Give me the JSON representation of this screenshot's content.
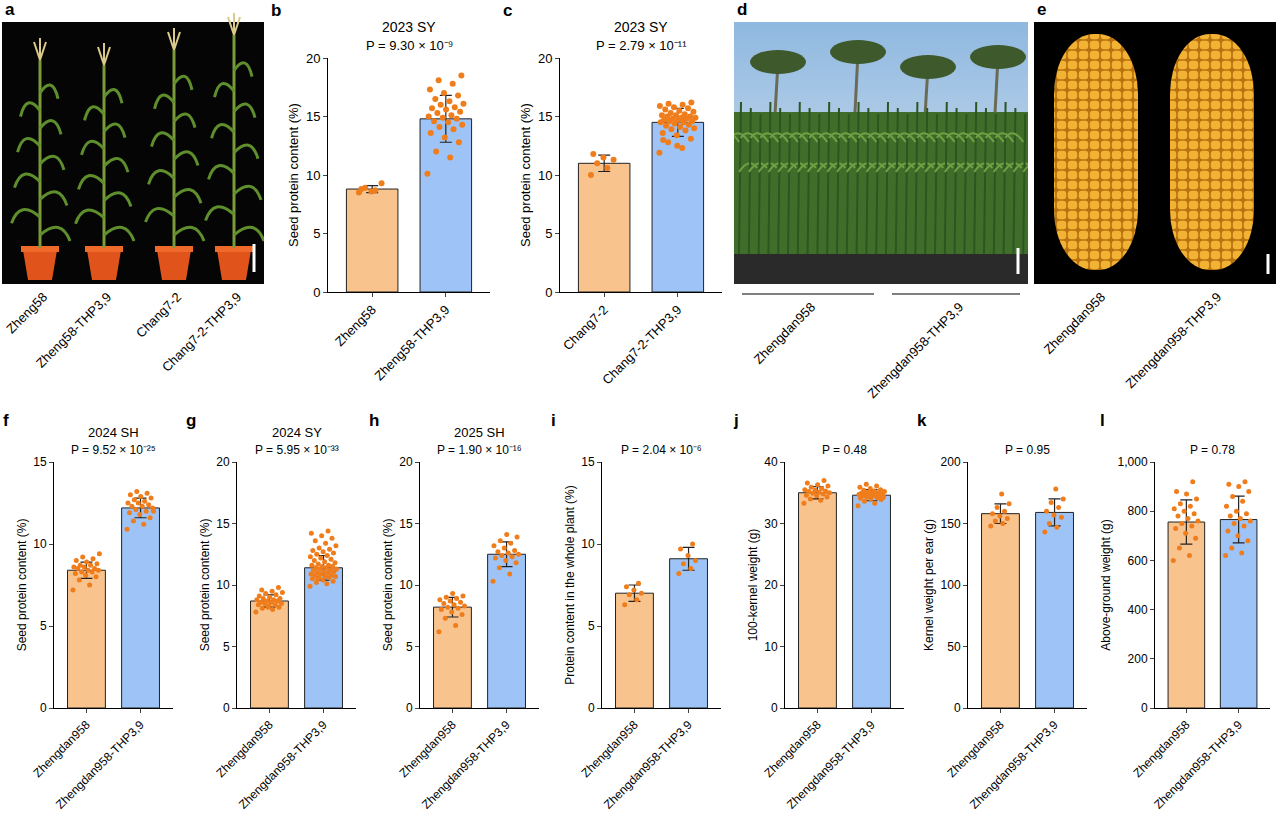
{
  "chart_data": [
    {
      "panel": "b",
      "type": "bar",
      "title": "2023 SY",
      "annotation": "P = 9.30 × 10⁻⁹",
      "categories": [
        "Zheng58",
        "Zheng58-THP3,9"
      ],
      "values": [
        8.8,
        14.8
      ],
      "error": [
        0.3,
        2.0
      ],
      "colors": [
        "#f9c38e",
        "#9ec4f7"
      ],
      "points": {
        "color": "#f07d1c",
        "values": [
          [
            8.5,
            8.7,
            8.9,
            9.3,
            8.6,
            8.8
          ],
          [
            10.1,
            11.5,
            12.0,
            12.8,
            13.2,
            13.6,
            13.9,
            14.1,
            14.3,
            14.5,
            14.6,
            14.8,
            14.9,
            15.0,
            15.1,
            15.3,
            15.4,
            15.6,
            15.7,
            15.8,
            16.0,
            16.1,
            16.3,
            16.5,
            16.8,
            17.0,
            17.3,
            17.8,
            18.1,
            18.5
          ]
        ]
      },
      "ylabel": "Seed protein content (%)",
      "ylim": [
        0,
        20
      ],
      "yticks": [
        0,
        5,
        10,
        15,
        20
      ],
      "grid": false
    },
    {
      "panel": "c",
      "type": "bar",
      "title": "2023 SY",
      "annotation": "P = 2.79 × 10⁻¹¹",
      "categories": [
        "Chang7-2",
        "Chang7-2-THP3,9"
      ],
      "values": [
        11.0,
        14.5
      ],
      "error": [
        0.7,
        1.2
      ],
      "colors": [
        "#f9c38e",
        "#9ec4f7"
      ],
      "points": {
        "color": "#f07d1c",
        "values": [
          [
            10.0,
            10.6,
            11.0,
            11.3,
            11.5,
            11.8
          ],
          [
            11.9,
            12.3,
            12.8,
            13.1,
            13.4,
            13.6,
            13.8,
            13.9,
            14.0,
            14.1,
            14.2,
            14.3,
            14.4,
            14.5,
            14.5,
            14.6,
            14.6,
            14.7,
            14.7,
            14.8,
            14.8,
            14.9,
            14.9,
            15.0,
            15.0,
            15.1,
            15.1,
            15.2,
            15.3,
            15.4,
            15.5,
            15.6,
            15.7,
            15.8,
            15.9,
            16.0,
            16.1,
            16.2,
            12.5,
            13.0
          ]
        ]
      },
      "ylabel": "Seed protein content (%)",
      "ylim": [
        0,
        20
      ],
      "yticks": [
        0,
        5,
        10,
        15,
        20
      ],
      "grid": false
    },
    {
      "panel": "f",
      "type": "bar",
      "title": "2024 SH",
      "annotation": "P = 9.52 × 10⁻²⁵",
      "categories": [
        "Zhengdan958",
        "Zhengdan958-THP3,9"
      ],
      "values": [
        8.4,
        12.2
      ],
      "error": [
        0.5,
        0.6
      ],
      "colors": [
        "#f9c38e",
        "#9ec4f7"
      ],
      "points": {
        "color": "#f07d1c",
        "values": [
          [
            7.2,
            7.5,
            7.8,
            8.0,
            8.1,
            8.2,
            8.3,
            8.3,
            8.4,
            8.4,
            8.5,
            8.5,
            8.6,
            8.6,
            8.7,
            8.7,
            8.8,
            8.9,
            9.0,
            9.1,
            9.2,
            9.4
          ],
          [
            10.9,
            11.2,
            11.4,
            11.6,
            11.8,
            11.9,
            12.0,
            12.1,
            12.2,
            12.3,
            12.3,
            12.4,
            12.5,
            12.5,
            12.6,
            12.7,
            12.8,
            12.9,
            13.0,
            13.1,
            13.2,
            12.0
          ]
        ]
      },
      "ylabel": "Seed protein content (%)",
      "ylim": [
        0,
        15
      ],
      "yticks": [
        0,
        5,
        10,
        15
      ],
      "grid": false
    },
    {
      "panel": "g",
      "type": "bar",
      "title": "2024 SY",
      "annotation": "P = 5.95 × 10⁻³³",
      "categories": [
        "Zhengdan958",
        "Zhengdan958-THP3,9"
      ],
      "values": [
        8.7,
        11.4
      ],
      "error": [
        0.5,
        1.0
      ],
      "colors": [
        "#f9c38e",
        "#9ec4f7"
      ],
      "points": {
        "color": "#f07d1c",
        "values": [
          [
            7.8,
            8.0,
            8.1,
            8.2,
            8.3,
            8.4,
            8.4,
            8.5,
            8.5,
            8.6,
            8.6,
            8.7,
            8.7,
            8.8,
            8.8,
            8.9,
            8.9,
            9.0,
            9.1,
            9.2,
            9.3,
            9.4,
            9.5,
            9.6,
            9.8,
            8.2
          ],
          [
            9.9,
            10.1,
            10.2,
            10.3,
            10.4,
            10.5,
            10.6,
            10.6,
            10.7,
            10.7,
            10.8,
            10.8,
            10.9,
            10.9,
            11.0,
            11.0,
            11.1,
            11.1,
            11.2,
            11.2,
            11.3,
            11.3,
            11.4,
            11.4,
            11.5,
            11.5,
            11.6,
            11.6,
            11.7,
            11.8,
            11.9,
            12.0,
            12.1,
            12.2,
            12.3,
            12.4,
            12.5,
            12.6,
            12.7,
            12.8,
            12.9,
            13.0,
            13.2,
            13.4,
            13.6,
            13.8,
            14.0,
            14.2,
            14.4,
            10.5
          ]
        ]
      },
      "ylabel": "Seed protein content (%)",
      "ylim": [
        0,
        20
      ],
      "yticks": [
        0,
        5,
        10,
        15,
        20
      ],
      "grid": false
    },
    {
      "panel": "h",
      "type": "bar",
      "title": "2025 SH",
      "annotation": "P = 1.90 × 10⁻¹⁶",
      "categories": [
        "Zhengdan958",
        "Zhengdan958-THP3,9"
      ],
      "values": [
        8.2,
        12.5
      ],
      "error": [
        0.8,
        1.0
      ],
      "colors": [
        "#f9c38e",
        "#9ec4f7"
      ],
      "points": {
        "color": "#f07d1c",
        "values": [
          [
            6.2,
            6.7,
            7.3,
            7.6,
            7.8,
            8.0,
            8.1,
            8.2,
            8.3,
            8.4,
            8.5,
            8.6,
            8.7,
            8.8,
            8.9,
            9.0,
            9.1,
            9.3
          ],
          [
            10.3,
            10.9,
            11.4,
            11.8,
            12.0,
            12.2,
            12.3,
            12.4,
            12.5,
            12.6,
            12.7,
            12.8,
            13.0,
            13.2,
            13.4,
            13.6,
            13.9,
            14.1
          ]
        ]
      },
      "ylabel": "Seed protein content (%)",
      "ylim": [
        0,
        20
      ],
      "yticks": [
        0,
        5,
        10,
        15,
        20
      ],
      "grid": false
    },
    {
      "panel": "i",
      "type": "bar",
      "annotation": "P = 2.04 × 10⁻⁶",
      "categories": [
        "Zhengdan958",
        "Zhengdan958-THP3,9"
      ],
      "values": [
        7.0,
        9.1
      ],
      "error": [
        0.5,
        0.7
      ],
      "colors": [
        "#f9c38e",
        "#9ec4f7"
      ],
      "points": {
        "color": "#f07d1c",
        "values": [
          [
            6.3,
            6.6,
            6.9,
            7.0,
            7.2,
            7.4,
            7.6
          ],
          [
            8.2,
            8.5,
            8.8,
            9.0,
            9.3,
            9.7,
            10.0
          ]
        ]
      },
      "ylabel": "Protein content in the whole plant (%)",
      "ylim": [
        0,
        15
      ],
      "yticks": [
        0,
        5,
        10,
        15
      ],
      "grid": false
    },
    {
      "panel": "j",
      "type": "bar",
      "annotation": "P = 0.48",
      "categories": [
        "Zhengdan958",
        "Zhengdan958-THP3,9"
      ],
      "values": [
        35.0,
        34.6
      ],
      "error": [
        1.0,
        0.9
      ],
      "colors": [
        "#f9c38e",
        "#9ec4f7"
      ],
      "points": {
        "color": "#f07d1c",
        "values": [
          [
            33.3,
            33.8,
            34.0,
            34.3,
            34.5,
            34.6,
            34.8,
            34.9,
            35.0,
            35.1,
            35.2,
            35.3,
            35.4,
            35.5,
            35.7,
            35.9,
            36.1,
            36.3,
            36.6,
            37.0
          ],
          [
            32.9,
            33.3,
            33.6,
            33.9,
            34.0,
            34.1,
            34.2,
            34.3,
            34.4,
            34.5,
            34.5,
            34.6,
            34.6,
            34.7,
            34.7,
            34.8,
            34.8,
            34.9,
            34.9,
            35.0,
            35.1,
            35.2,
            35.3,
            35.4,
            35.5,
            35.7,
            35.9,
            36.1,
            36.4,
            34.2
          ]
        ]
      },
      "ylabel": "100-kernel weight (g)",
      "ylim": [
        0,
        40
      ],
      "yticks": [
        0,
        10,
        20,
        30,
        40
      ],
      "grid": false
    },
    {
      "panel": "k",
      "type": "bar",
      "annotation": "P = 0.95",
      "categories": [
        "Zhengdan958",
        "Zhengdan958-THP3,9"
      ],
      "values": [
        158,
        159
      ],
      "error": [
        8,
        11
      ],
      "colors": [
        "#f9c38e",
        "#9ec4f7"
      ],
      "points": {
        "color": "#f07d1c",
        "values": [
          [
            148,
            150,
            152,
            154,
            156,
            158,
            160,
            163,
            166,
            174
          ],
          [
            143,
            147,
            150,
            155,
            157,
            160,
            163,
            167,
            170,
            178
          ]
        ]
      },
      "ylabel": "Kernel weight per ear (g)",
      "ylim": [
        0,
        200
      ],
      "yticks": [
        0,
        50,
        100,
        150,
        200
      ],
      "grid": false
    },
    {
      "panel": "l",
      "type": "bar",
      "annotation": "P = 0.78",
      "categories": [
        "Zhengdan958",
        "Zhengdan958-THP3,9"
      ],
      "values": [
        756,
        766
      ],
      "error": [
        90,
        95
      ],
      "colors": [
        "#f9c38e",
        "#9ec4f7"
      ],
      "points": {
        "color": "#f07d1c",
        "values": [
          [
            600,
            620,
            650,
            690,
            710,
            730,
            740,
            750,
            760,
            770,
            780,
            790,
            800,
            810,
            820,
            830,
            850,
            870,
            880,
            920
          ],
          [
            620,
            630,
            650,
            680,
            700,
            720,
            740,
            750,
            760,
            770,
            780,
            790,
            800,
            820,
            840,
            860,
            880,
            900,
            910,
            920
          ]
        ]
      },
      "ylabel": "Above-ground weight (g)",
      "ylim": [
        0,
        1000
      ],
      "yticks": [
        0,
        200,
        400,
        600,
        800,
        {
          "value": 1000,
          "label": "1,000"
        }
      ],
      "grid": false
    }
  ],
  "photos": [
    {
      "panel": "a",
      "labels": [
        "Zheng58",
        "Zheng58-THP3,9",
        "Chang7-2",
        "Chang7-2-THP3,9"
      ]
    },
    {
      "panel": "d",
      "labels": [
        "Zhengdan958",
        "Zhengdan958-THP3,9"
      ]
    },
    {
      "panel": "e",
      "labels": [
        "Zhengdan958",
        "Zhengdan958-THP3,9"
      ]
    }
  ]
}
